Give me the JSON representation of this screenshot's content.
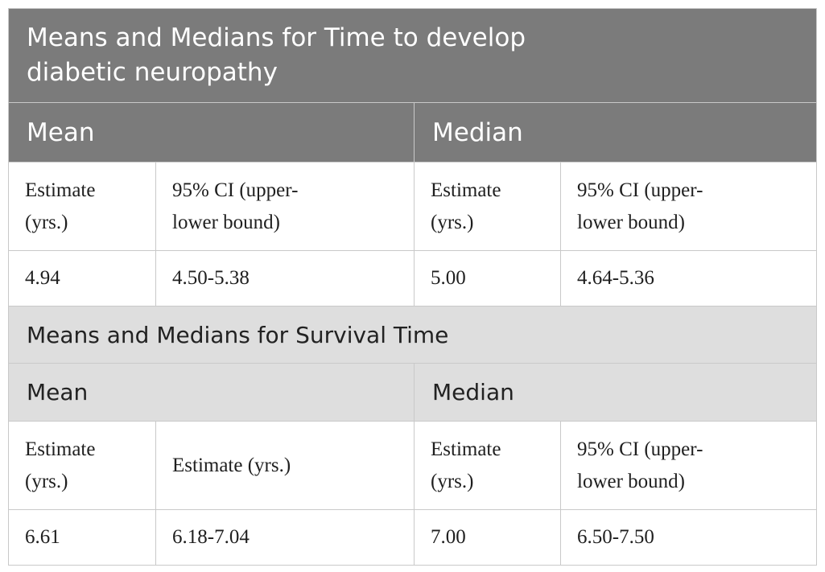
{
  "section1": {
    "title_line1": "Means and Medians for Time to develop",
    "title_line2": "diabetic neuropathy",
    "mean_header": "Mean",
    "median_header": "Median",
    "labels": {
      "mean_estimate_l1": "Estimate",
      "mean_estimate_l2": "(yrs.)",
      "mean_ci_l1": "95% CI (upper-",
      "mean_ci_l2": "lower bound)",
      "median_estimate_l1": "Estimate",
      "median_estimate_l2": "(yrs.)",
      "median_ci_l1": "95% CI (upper-",
      "median_ci_l2": "lower bound)"
    },
    "values": {
      "mean_estimate": "4.94",
      "mean_ci": "4.50-5.38",
      "median_estimate": "5.00",
      "median_ci": "4.64-5.36"
    }
  },
  "section2": {
    "title": "Means and Medians for Survival Time",
    "mean_header": "Mean",
    "median_header": "Median",
    "labels": {
      "mean_estimate_l1": "Estimate",
      "mean_estimate_l2": "(yrs.)",
      "mean_second": "Estimate (yrs.)",
      "median_estimate_l1": "Estimate",
      "median_estimate_l2": "(yrs.)",
      "median_ci_l1": "95% CI (upper-",
      "median_ci_l2": "lower bound)"
    },
    "values": {
      "mean_estimate": "6.61",
      "mean_ci": "6.18-7.04",
      "median_estimate": "7.00",
      "median_ci": "6.50-7.50"
    }
  },
  "colors": {
    "dark_header": "#7b7b7b",
    "light_header": "#dedede",
    "border": "#c9c9c9"
  }
}
